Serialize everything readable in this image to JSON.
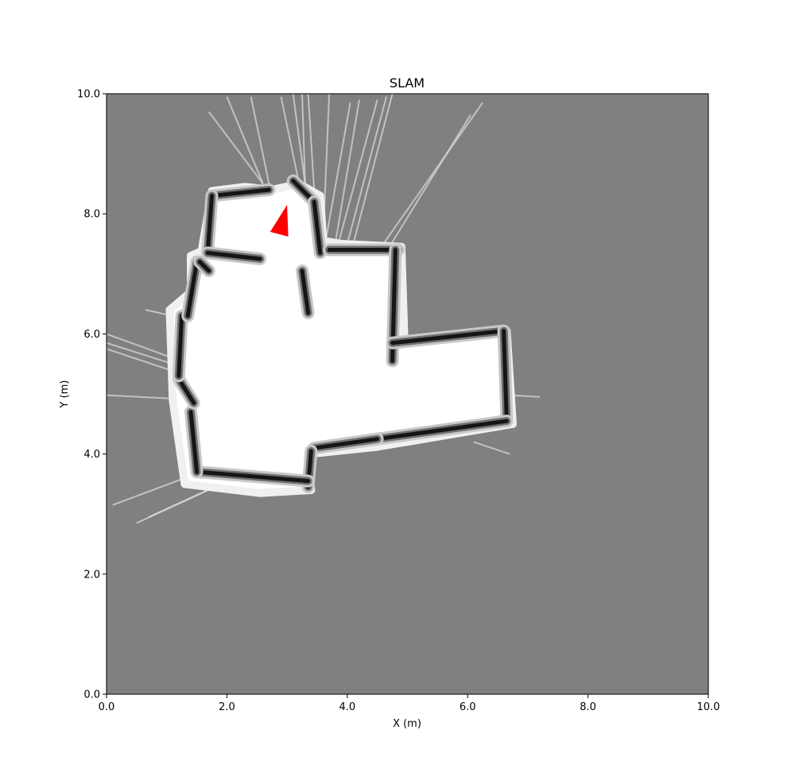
{
  "chart_data": {
    "type": "occupancy-grid",
    "title": "SLAM",
    "xlabel": "X (m)",
    "ylabel": "Y (m)",
    "xlim": [
      0,
      10
    ],
    "ylim": [
      0,
      10
    ],
    "x_ticks": [
      "0.0",
      "2.0",
      "4.0",
      "6.0",
      "8.0",
      "10.0"
    ],
    "y_ticks": [
      "0.0",
      "2.0",
      "4.0",
      "6.0",
      "8.0",
      "10.0"
    ],
    "grid": false,
    "colors": {
      "unknown": "#808080",
      "free": "#ffffff",
      "occupied": "#000000",
      "robot": "#ff0000"
    },
    "robot_pose": {
      "polygon": [
        [
          3.0,
          8.15
        ],
        [
          2.72,
          7.7
        ],
        [
          3.02,
          7.62
        ]
      ]
    },
    "free_regions": [
      [
        [
          1.58,
          7.38
        ],
        [
          1.75,
          8.38
        ],
        [
          2.3,
          8.45
        ],
        [
          2.75,
          8.4
        ],
        [
          3.2,
          8.5
        ],
        [
          3.55,
          8.3
        ],
        [
          3.6,
          7.55
        ],
        [
          3.9,
          7.5
        ],
        [
          4.9,
          7.45
        ],
        [
          4.95,
          5.9
        ],
        [
          6.65,
          6.05
        ],
        [
          6.75,
          4.5
        ],
        [
          4.5,
          4.12
        ],
        [
          3.35,
          4.0
        ],
        [
          3.4,
          3.4
        ],
        [
          2.55,
          3.35
        ],
        [
          1.3,
          3.5
        ],
        [
          1.1,
          4.9
        ],
        [
          1.05,
          6.4
        ],
        [
          1.4,
          6.7
        ],
        [
          1.4,
          7.3
        ]
      ]
    ],
    "wall_segments": [
      [
        [
          1.75,
          8.3
        ],
        [
          2.7,
          8.4
        ]
      ],
      [
        [
          1.75,
          8.3
        ],
        [
          1.68,
          7.35
        ]
      ],
      [
        [
          1.68,
          7.35
        ],
        [
          2.55,
          7.25
        ]
      ],
      [
        [
          3.1,
          8.55
        ],
        [
          3.45,
          8.2
        ]
      ],
      [
        [
          3.45,
          8.2
        ],
        [
          3.55,
          7.35
        ]
      ],
      [
        [
          3.25,
          7.05
        ],
        [
          3.35,
          6.35
        ]
      ],
      [
        [
          3.7,
          7.4
        ],
        [
          4.85,
          7.4
        ]
      ],
      [
        [
          4.8,
          7.4
        ],
        [
          4.75,
          5.55
        ]
      ],
      [
        [
          4.75,
          5.85
        ],
        [
          6.6,
          6.05
        ]
      ],
      [
        [
          6.6,
          6.05
        ],
        [
          6.65,
          4.55
        ]
      ],
      [
        [
          6.65,
          4.55
        ],
        [
          4.5,
          4.25
        ]
      ],
      [
        [
          4.5,
          4.25
        ],
        [
          3.45,
          4.1
        ]
      ],
      [
        [
          3.4,
          4.05
        ],
        [
          3.35,
          3.45
        ]
      ],
      [
        [
          3.35,
          3.55
        ],
        [
          1.55,
          3.7
        ]
      ],
      [
        [
          1.5,
          3.7
        ],
        [
          1.4,
          4.7
        ]
      ],
      [
        [
          1.45,
          4.85
        ],
        [
          1.2,
          5.25
        ]
      ],
      [
        [
          1.2,
          5.3
        ],
        [
          1.25,
          6.3
        ]
      ],
      [
        [
          1.35,
          6.3
        ],
        [
          1.5,
          7.2
        ]
      ],
      [
        [
          1.55,
          7.2
        ],
        [
          1.7,
          7.05
        ]
      ]
    ],
    "ray_segments": [
      [
        [
          1.7,
          9.7
        ],
        [
          2.6,
          8.5
        ]
      ],
      [
        [
          2.0,
          9.95
        ],
        [
          2.6,
          8.5
        ]
      ],
      [
        [
          2.4,
          9.95
        ],
        [
          2.7,
          8.5
        ]
      ],
      [
        [
          2.9,
          9.95
        ],
        [
          3.2,
          8.5
        ]
      ],
      [
        [
          3.1,
          10.0
        ],
        [
          3.3,
          8.5
        ]
      ],
      [
        [
          3.25,
          10.0
        ],
        [
          3.3,
          8.5
        ]
      ],
      [
        [
          3.35,
          10.0
        ],
        [
          3.45,
          8.4
        ]
      ],
      [
        [
          3.7,
          10.0
        ],
        [
          3.6,
          7.6
        ]
      ],
      [
        [
          4.05,
          9.85
        ],
        [
          3.65,
          7.6
        ]
      ],
      [
        [
          4.2,
          9.9
        ],
        [
          3.8,
          7.5
        ]
      ],
      [
        [
          4.5,
          9.9
        ],
        [
          3.85,
          7.5
        ]
      ],
      [
        [
          4.65,
          9.95
        ],
        [
          4.0,
          7.5
        ]
      ],
      [
        [
          4.75,
          10.0
        ],
        [
          4.1,
          7.5
        ]
      ],
      [
        [
          6.25,
          9.85
        ],
        [
          4.6,
          7.5
        ]
      ],
      [
        [
          6.05,
          9.65
        ],
        [
          4.7,
          7.45
        ]
      ],
      [
        [
          0.0,
          6.0
        ],
        [
          1.1,
          5.6
        ]
      ],
      [
        [
          0.0,
          5.85
        ],
        [
          1.1,
          5.5
        ]
      ],
      [
        [
          0.0,
          5.75
        ],
        [
          1.05,
          5.4
        ]
      ],
      [
        [
          0.0,
          4.98
        ],
        [
          1.5,
          4.9
        ]
      ],
      [
        [
          0.1,
          3.15
        ],
        [
          1.3,
          3.6
        ]
      ],
      [
        [
          0.5,
          2.85
        ],
        [
          1.8,
          3.45
        ]
      ],
      [
        [
          0.7,
          2.95
        ],
        [
          1.9,
          3.5
        ]
      ],
      [
        [
          0.65,
          6.4
        ],
        [
          1.1,
          6.3
        ]
      ],
      [
        [
          4.8,
          6.65
        ],
        [
          5.0,
          6.3
        ]
      ],
      [
        [
          6.7,
          4.98
        ],
        [
          7.2,
          4.95
        ]
      ],
      [
        [
          6.1,
          4.2
        ],
        [
          6.7,
          4.0
        ]
      ]
    ]
  }
}
